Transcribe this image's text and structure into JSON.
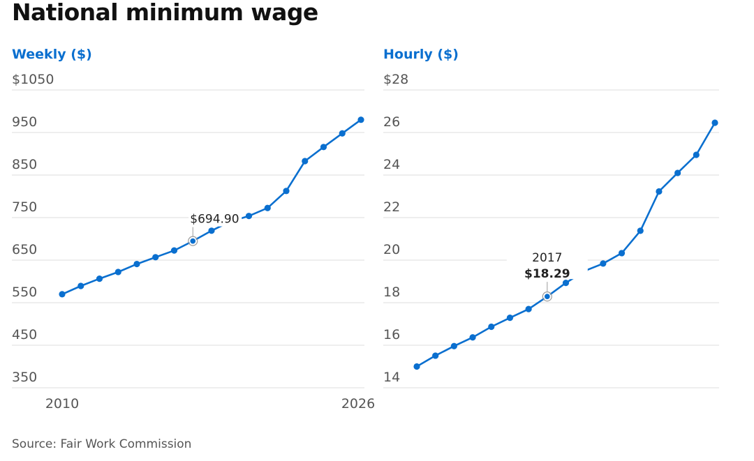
{
  "title": "National minimum wage",
  "source": "Source: Fair Work Commission",
  "colors": {
    "line": "#0a6fcf",
    "subtitle": "#0a6fcf",
    "grid": "#dcdcdc",
    "text": "#555555"
  },
  "chart_data": [
    {
      "type": "line",
      "title": "Weekly ($)",
      "x": [
        2010,
        2011,
        2012,
        2013,
        2014,
        2015,
        2016,
        2017,
        2018,
        2019,
        2020,
        2021,
        2022,
        2023,
        2024,
        2025,
        2026
      ],
      "series": [
        {
          "values": [
            569.9,
            589.3,
            606.4,
            622.2,
            640.9,
            656.9,
            672.7,
            694.9,
            719.2,
            740.8,
            753.8,
            772.6,
            812.6,
            882.8,
            915.9,
            948.0,
            980.0
          ]
        }
      ],
      "ylim": [
        350,
        1050
      ],
      "yticks": [
        350,
        450,
        550,
        650,
        750,
        850,
        950,
        1050
      ],
      "ytick_labels": [
        "350",
        "450",
        "550",
        "650",
        "750",
        "850",
        "950",
        "$1050"
      ],
      "xtick_labels": [
        "2010",
        "2026"
      ],
      "annotation": {
        "x": 2017,
        "label": "$694.90"
      },
      "grid": true
    },
    {
      "type": "line",
      "title": "Hourly ($)",
      "x": [
        2010,
        2011,
        2012,
        2013,
        2014,
        2015,
        2016,
        2017,
        2018,
        2019,
        2020,
        2021,
        2022,
        2023,
        2024,
        2025,
        2026
      ],
      "series": [
        {
          "values": [
            15.0,
            15.51,
            15.96,
            16.37,
            16.87,
            17.29,
            17.7,
            18.29,
            18.93,
            19.49,
            19.84,
            20.33,
            21.38,
            23.23,
            24.1,
            24.95,
            26.46
          ]
        }
      ],
      "ylim": [
        14,
        28
      ],
      "yticks": [
        14,
        16,
        18,
        20,
        22,
        24,
        26,
        28
      ],
      "ytick_labels": [
        "14",
        "16",
        "18",
        "20",
        "22",
        "24",
        "26",
        "$28"
      ],
      "annotation": {
        "x": 2017,
        "year_label": "2017",
        "value_label": "$18.29"
      },
      "grid": true
    }
  ]
}
